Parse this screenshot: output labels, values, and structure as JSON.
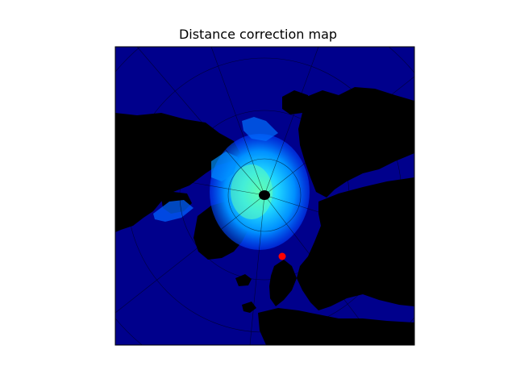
{
  "figure": {
    "title": "Distance correction map"
  },
  "colors": {
    "ocean": "#00008c",
    "land": "#000000",
    "ice_low": "#0040ff",
    "ice_mid": "#00b8ff",
    "ice_high": "#40ffc0",
    "graticule": "#000000",
    "pole_marker": "#000000",
    "point_marker": "#ff0000",
    "frame": "#000000"
  },
  "map": {
    "projection": "north-polar-stereographic",
    "colormap": "jet",
    "graticule": true,
    "markers": [
      {
        "name": "north-pole-marker",
        "color": "#000000"
      },
      {
        "name": "location-marker",
        "color": "#ff0000"
      }
    ]
  }
}
